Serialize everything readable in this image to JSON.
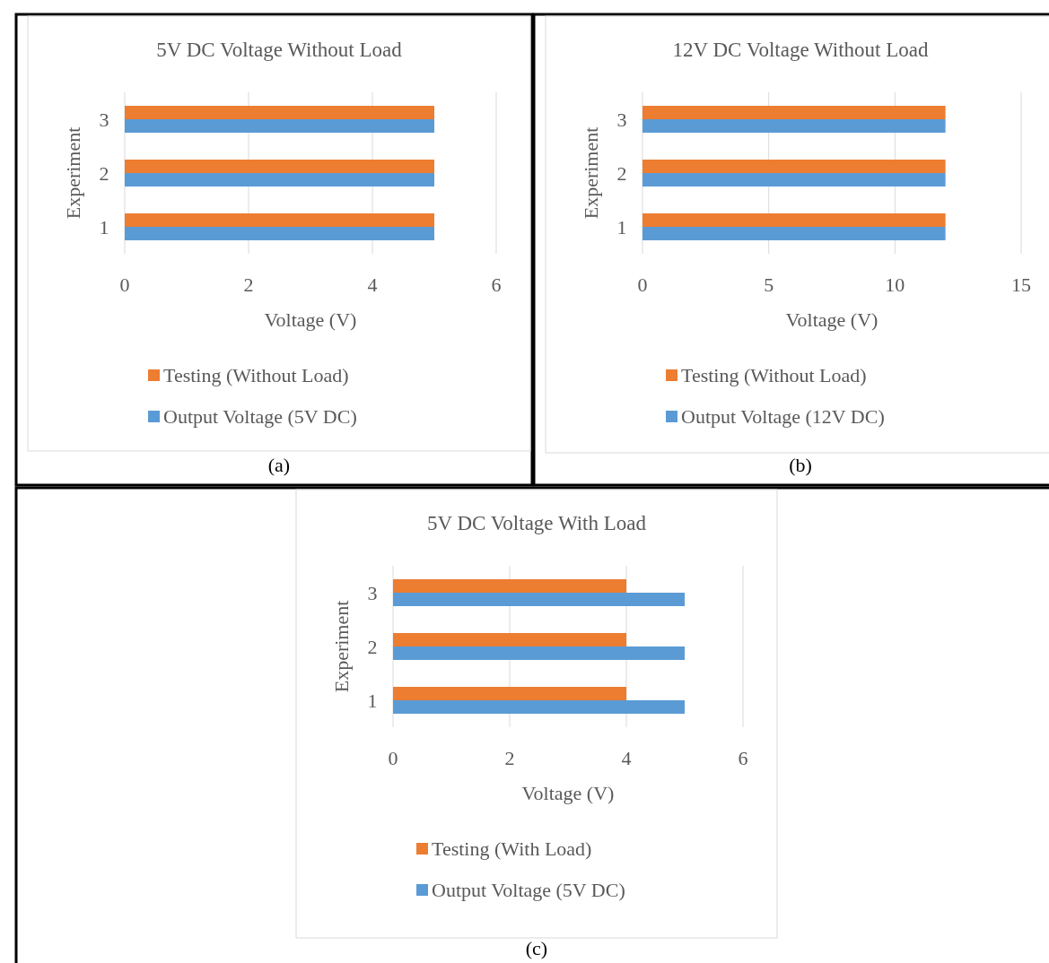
{
  "chart_data": [
    {
      "type": "bar",
      "orientation": "horizontal",
      "title": "5V DC Voltage Without Load",
      "xlabel": "Voltage (V)",
      "ylabel": "Experiment",
      "categories": [
        "3",
        "2",
        "1"
      ],
      "xlim": [
        0,
        6
      ],
      "xticks": [
        0,
        2,
        4,
        6
      ],
      "grid": "x",
      "legend": "bottom",
      "annotations": [
        "(a)"
      ],
      "series": [
        {
          "name": "Testing (Without Load)",
          "color": "#ed7d31",
          "values": [
            5,
            5,
            5
          ]
        },
        {
          "name": "Output Voltage (5V DC)",
          "color": "#5b9bd5",
          "values": [
            5,
            5,
            5
          ]
        }
      ]
    },
    {
      "type": "bar",
      "orientation": "horizontal",
      "title": "12V DC Voltage Without Load",
      "xlabel": "Voltage (V)",
      "ylabel": "Experiment",
      "categories": [
        "3",
        "2",
        "1"
      ],
      "xlim": [
        0,
        15
      ],
      "xticks": [
        0,
        5,
        10,
        15
      ],
      "grid": "x",
      "legend": "bottom",
      "annotations": [
        "(b)"
      ],
      "series": [
        {
          "name": "Testing (Without Load)",
          "color": "#ed7d31",
          "values": [
            12,
            12,
            12
          ]
        },
        {
          "name": "Output Voltage (12V DC)",
          "color": "#5b9bd5",
          "values": [
            12,
            12,
            12
          ]
        }
      ]
    },
    {
      "type": "bar",
      "orientation": "horizontal",
      "title": "5V DC Voltage With Load",
      "xlabel": "Voltage (V)",
      "ylabel": "Experiment",
      "categories": [
        "3",
        "2",
        "1"
      ],
      "xlim": [
        0,
        6
      ],
      "xticks": [
        0,
        2,
        4,
        6
      ],
      "grid": "x",
      "legend": "bottom",
      "annotations": [
        "(c)"
      ],
      "series": [
        {
          "name": "Testing (With Load)",
          "color": "#ed7d31",
          "values": [
            4,
            4,
            4
          ]
        },
        {
          "name": "Output Voltage (5V DC)",
          "color": "#5b9bd5",
          "values": [
            5,
            5,
            5
          ]
        }
      ]
    }
  ]
}
